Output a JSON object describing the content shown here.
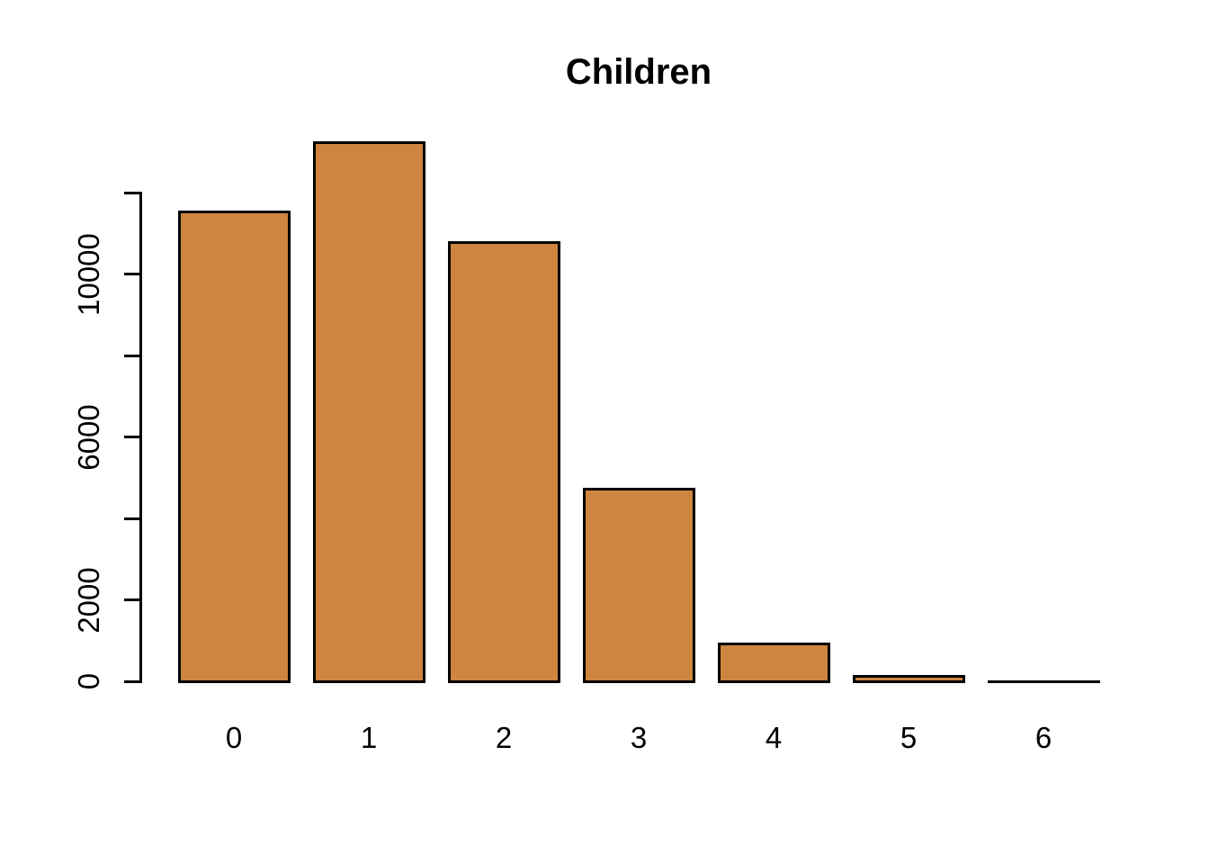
{
  "chart_data": {
    "type": "bar",
    "title": "Children",
    "xlabel": "",
    "ylabel": "",
    "categories": [
      "0",
      "1",
      "2",
      "3",
      "4",
      "5",
      "6"
    ],
    "values": [
      11600,
      13300,
      10850,
      4800,
      1000,
      200,
      20
    ],
    "ylim": [
      0,
      12000
    ],
    "y_ticks": [
      0,
      2000,
      4000,
      6000,
      8000,
      10000,
      12000
    ],
    "y_tick_labels": [
      "0",
      "2000",
      "",
      "6000",
      "",
      "10000",
      ""
    ],
    "grid": false,
    "legend_position": "none",
    "bar_fill_color": "#CD853F",
    "bar_border_color": "#000000",
    "axis_color": "#000000",
    "text_color": "#000000",
    "background_color": "#FFFFFF"
  }
}
